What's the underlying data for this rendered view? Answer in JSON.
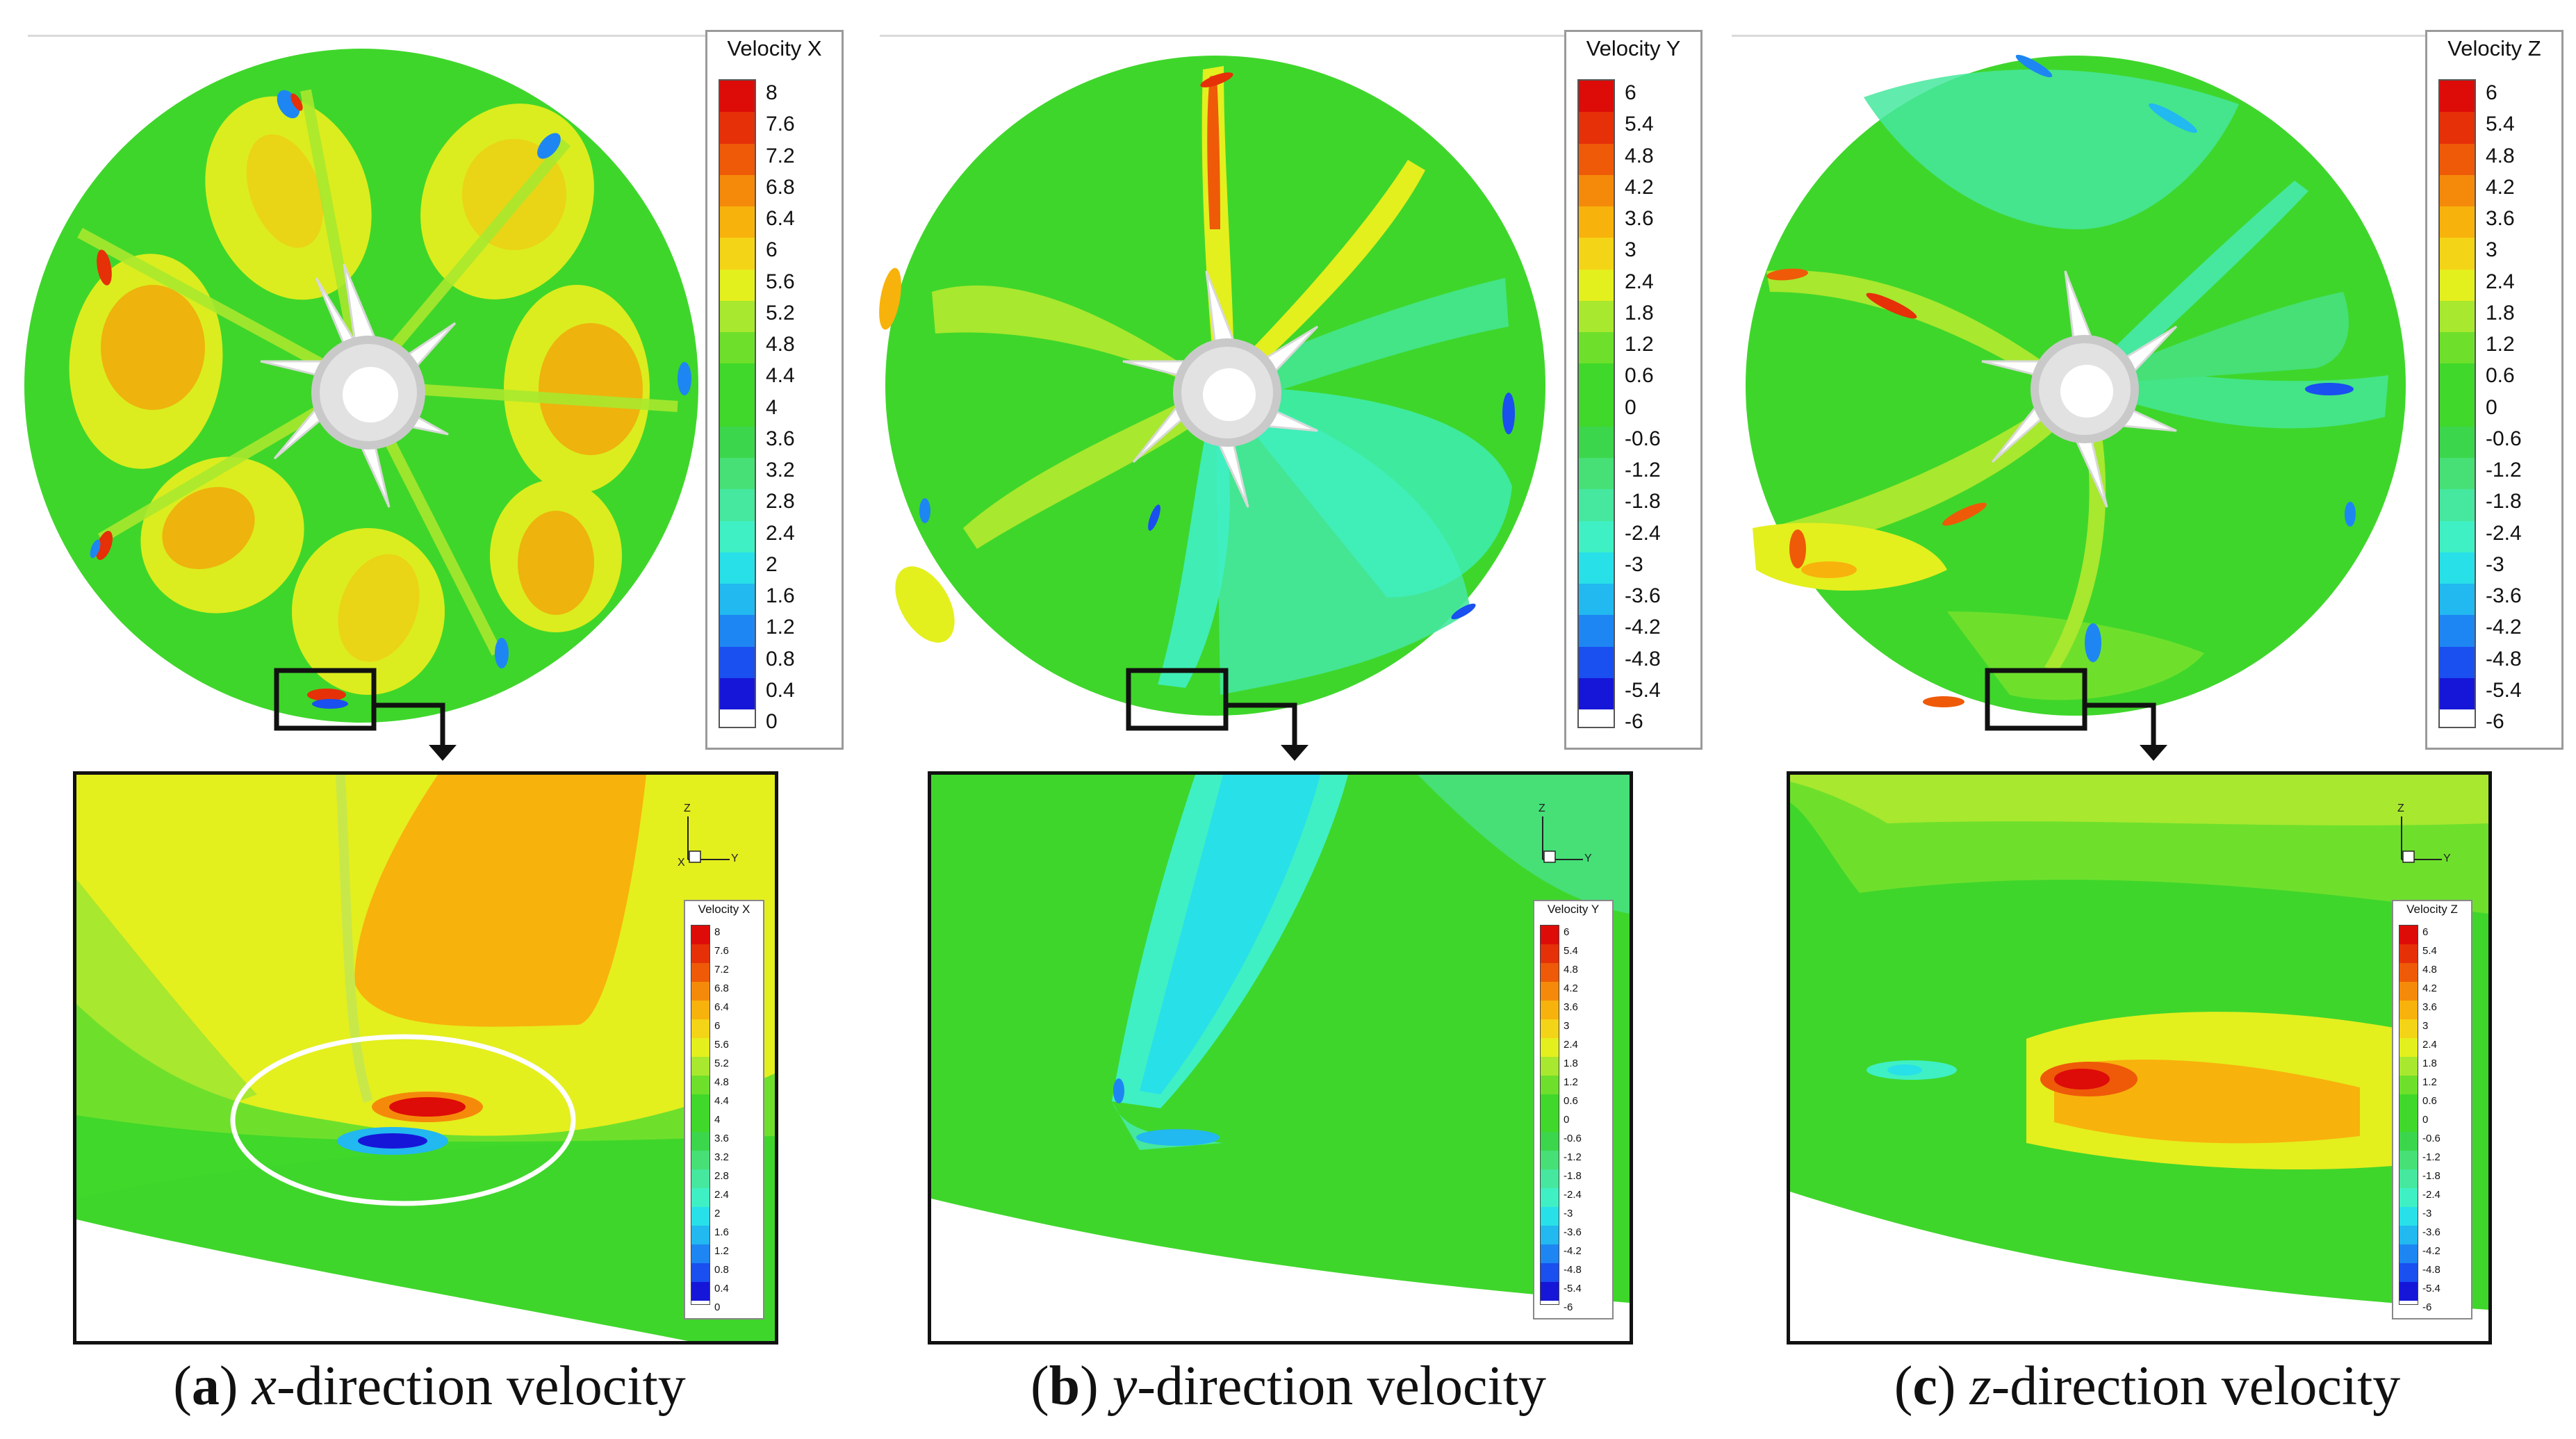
{
  "colors": {
    "contour_scale": [
      "#1616d8",
      "#1a4ff0",
      "#1e86f2",
      "#22b8f0",
      "#28e0e8",
      "#3ff0c4",
      "#45e89e",
      "#46e077",
      "#3cd64c",
      "#40d82a",
      "#6ee02c",
      "#a8e82e",
      "#e4ef1e",
      "#f4d416",
      "#f8b20c",
      "#f58a0a",
      "#ee5a08",
      "#e53008",
      "#dd0c08"
    ],
    "background_green": "#3fd62b",
    "hub_grey": "#d0d0d0",
    "ellipse": "#ffffff"
  },
  "panels": [
    {
      "id": "a",
      "component": "x",
      "legend": {
        "title": "Velocity X",
        "ticks": [
          "8",
          "7.6",
          "7.2",
          "6.8",
          "6.4",
          "6",
          "5.6",
          "5.2",
          "4.8",
          "4.4",
          "4",
          "3.6",
          "3.2",
          "2.8",
          "2.4",
          "2",
          "1.6",
          "1.2",
          "0.8",
          "0.4",
          "0"
        ]
      },
      "axes": {
        "z": "Z",
        "y": "Y",
        "x": "X"
      },
      "caption": {
        "letter": "a",
        "var": "x",
        "text": "-direction velocity"
      }
    },
    {
      "id": "b",
      "component": "y",
      "legend": {
        "title": "Velocity Y",
        "ticks": [
          "6",
          "5.4",
          "4.8",
          "4.2",
          "3.6",
          "3",
          "2.4",
          "1.8",
          "1.2",
          "0.6",
          "0",
          "-0.6",
          "-1.2",
          "-1.8",
          "-2.4",
          "-3",
          "-3.6",
          "-4.2",
          "-4.8",
          "-5.4",
          "-6"
        ]
      },
      "axes": {
        "z": "Z",
        "y": "Y"
      },
      "caption": {
        "letter": "b",
        "var": "y",
        "text": "-direction velocity"
      }
    },
    {
      "id": "c",
      "component": "z",
      "legend": {
        "title": "Velocity Z",
        "ticks": [
          "6",
          "5.4",
          "4.8",
          "4.2",
          "3.6",
          "3",
          "2.4",
          "1.8",
          "1.2",
          "0.6",
          "0",
          "-0.6",
          "-1.2",
          "-1.8",
          "-2.4",
          "-3",
          "-3.6",
          "-4.2",
          "-4.8",
          "-5.4",
          "-6"
        ]
      },
      "axes": {
        "z": "Z",
        "y": "Y"
      },
      "caption": {
        "letter": "c",
        "var": "z",
        "text": "-direction velocity"
      }
    }
  ]
}
